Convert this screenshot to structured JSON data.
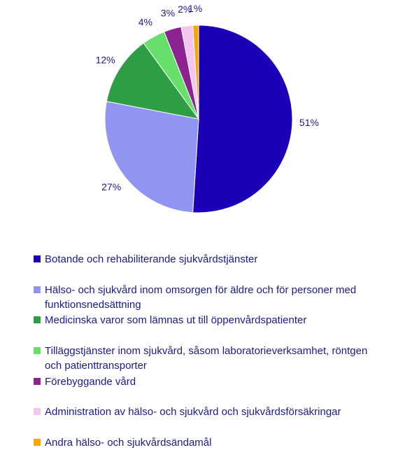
{
  "chart_data": {
    "type": "pie",
    "categories": [
      "Botande och rehabiliterande sjukvårdstjänster",
      "Hälso- och sjukvård inom omsorgen för äldre och för personer med funktionsnedsättning",
      "Medicinska varor som lämnas ut till öppenvårdspatienter",
      "Tilläggstjänster inom sjukvård, såsom laboratorieverksamhet, röntgen och patienttransporter",
      "Förebyggande vård",
      "Administration av hälso- och sjukvård och sjukvårdsförsäkringar",
      "Andra hälso- och sjukvårdsändamål"
    ],
    "values": [
      51,
      27,
      12,
      4,
      3,
      2,
      1
    ],
    "labels": [
      "51%",
      "27%",
      "12%",
      "4%",
      "3%",
      "2%",
      "1%"
    ],
    "colors": [
      "#1b00b8",
      "#8f95f1",
      "#2e9e45",
      "#66e06a",
      "#8c2391",
      "#f3c6ef",
      "#f7a800"
    ],
    "legend_position": "bottom"
  }
}
